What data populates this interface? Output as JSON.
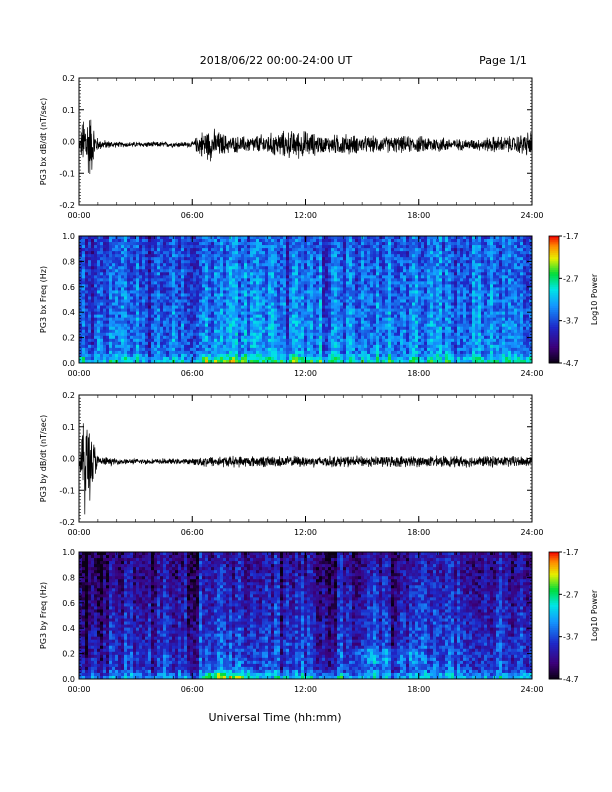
{
  "header": {
    "title": "2018/06/22  00:00-24:00 UT",
    "page": "Page 1/1"
  },
  "footer": {
    "xlabel": "Universal Time (hh:mm)"
  },
  "chart_data": [
    {
      "type": "line",
      "ylabel": "PG3 bx dB/dt (nT/sec)",
      "ylim": [
        -0.2,
        0.2
      ],
      "yticks": [
        "0.2",
        "0.1",
        "0.0",
        "-0.1",
        "-0.2"
      ],
      "xlim": [
        0,
        24
      ],
      "xticks": [
        "00:00",
        "06:00",
        "12:00",
        "18:00",
        "24:00"
      ],
      "series": [
        {
          "x": [
            0,
            0.3,
            0.6,
            1,
            2,
            4,
            6,
            6.5,
            7,
            8,
            9,
            10,
            11,
            12,
            13,
            14,
            15,
            16,
            17,
            18,
            19,
            20,
            21,
            22,
            23,
            24
          ],
          "envelope": [
            0.0,
            0.14,
            0.12,
            0.02,
            0.01,
            0.01,
            0.01,
            0.05,
            0.06,
            0.03,
            0.03,
            0.04,
            0.05,
            0.05,
            0.03,
            0.04,
            0.03,
            0.03,
            0.03,
            0.03,
            0.03,
            0.02,
            0.02,
            0.03,
            0.03,
            0.05
          ]
        }
      ]
    },
    {
      "type": "heatmap",
      "ylabel": "PG3 bx Freq (Hz)",
      "ylim": [
        0.0,
        1.0
      ],
      "yticks": [
        "1.0",
        "0.8",
        "0.6",
        "0.4",
        "0.2",
        "0.0"
      ],
      "xlim": [
        0,
        24
      ],
      "xticks": [
        "00:00",
        "06:00",
        "12:00",
        "18:00",
        "24:00"
      ],
      "colorbar": {
        "label": "Log10 Power",
        "ticks": [
          "-1.7",
          "-2.7",
          "-3.7",
          "-4.7"
        ],
        "range": [
          -4.7,
          -1.7
        ]
      }
    },
    {
      "type": "line",
      "ylabel": "PG3 by dB/dt (nT/sec)",
      "ylim": [
        -0.2,
        0.2
      ],
      "yticks": [
        "0.2",
        "0.1",
        "0.0",
        "-0.1",
        "-0.2"
      ],
      "xlim": [
        0,
        24
      ],
      "xticks": [
        "00:00",
        "06:00",
        "12:00",
        "18:00",
        "24:00"
      ],
      "series": [
        {
          "x": [
            0,
            0.3,
            0.6,
            1,
            2,
            4,
            6,
            6.5,
            7,
            8,
            9,
            10,
            11,
            12,
            13,
            14,
            15,
            16,
            17,
            18,
            19,
            20,
            21,
            22,
            23,
            24
          ],
          "envelope": [
            0.0,
            0.2,
            0.14,
            0.02,
            0.01,
            0.01,
            0.01,
            0.02,
            0.02,
            0.02,
            0.02,
            0.02,
            0.02,
            0.02,
            0.02,
            0.02,
            0.02,
            0.02,
            0.02,
            0.02,
            0.02,
            0.02,
            0.02,
            0.02,
            0.02,
            0.02
          ]
        }
      ]
    },
    {
      "type": "heatmap",
      "ylabel": "PG3 by Freq (Hz)",
      "ylim": [
        0.0,
        1.0
      ],
      "yticks": [
        "1.0",
        "0.8",
        "0.6",
        "0.4",
        "0.2",
        "0.0"
      ],
      "xlim": [
        0,
        24
      ],
      "xticks": [
        "00:00",
        "06:00",
        "12:00",
        "18:00",
        "24:00"
      ],
      "colorbar": {
        "label": "Log10 Power",
        "ticks": [
          "-1.7",
          "-2.7",
          "-3.7",
          "-4.7"
        ],
        "range": [
          -4.7,
          -1.7
        ]
      }
    }
  ],
  "colors": {
    "axis": "#000000",
    "trace": "#000000"
  }
}
